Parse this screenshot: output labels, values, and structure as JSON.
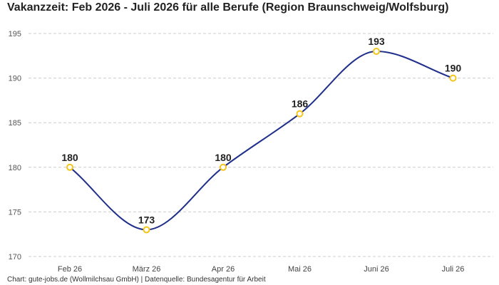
{
  "title": "Vakanzzeit: Feb 2026 - Juli 2026 für alle Berufe (Region Braunschweig/Wolfsburg)",
  "source": "Chart: gute-jobs.de (Wollmilchsau GmbH) | Datenquelle: Bundesagentur für Arbeit",
  "colors": {
    "line": "#1f2f8a",
    "marker": "#f5c518",
    "grid": "#cccccc"
  },
  "chart_data": {
    "type": "line",
    "categories": [
      "Feb 26",
      "März 26",
      "Apr 26",
      "Mai 26",
      "Juni 26",
      "Juli 26"
    ],
    "values": [
      180,
      173,
      180,
      186,
      193,
      190
    ],
    "title": "Vakanzzeit: Feb 2026 - Juli 2026 für alle Berufe (Region Braunschweig/Wolfsburg)",
    "xlabel": "",
    "ylabel": "",
    "ylim": [
      170,
      195
    ],
    "yticks": [
      170,
      175,
      180,
      185,
      190,
      195
    ],
    "grid": true,
    "smooth": true,
    "data_labels": true,
    "legend": "none"
  }
}
